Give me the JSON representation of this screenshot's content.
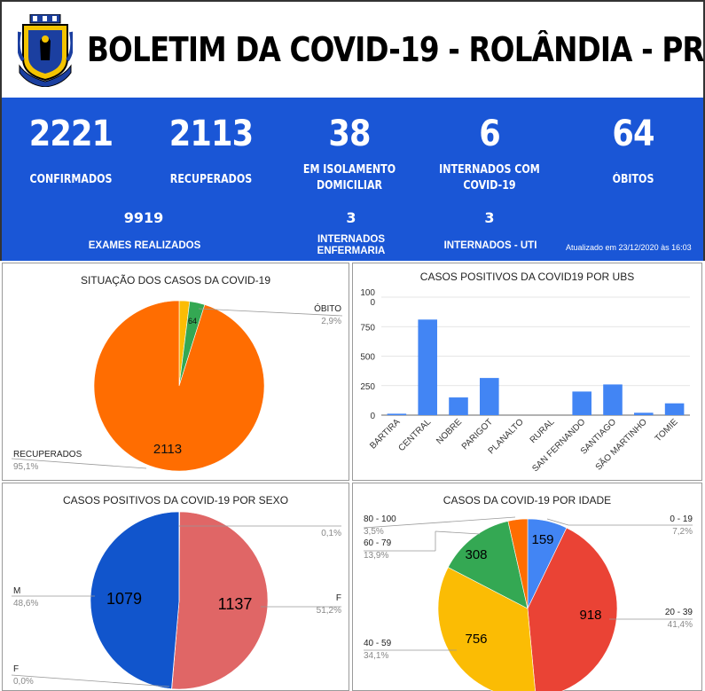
{
  "header": {
    "title": "BOLETIM DA COVID-19 - ROLÂNDIA - PR",
    "crest_icon": "municipal-coat-of-arms"
  },
  "stats": {
    "confirmados": {
      "value": "2221",
      "label": "CONFIRMADOS"
    },
    "recuperados": {
      "value": "2113",
      "label": "RECUPERADOS"
    },
    "isolamento": {
      "value": "38",
      "label_line1": "EM ISOLAMENTO",
      "label_line2": "DOMICILIAR"
    },
    "internados": {
      "value": "6",
      "label_line1": "INTERNADOS COM",
      "label_line2": "COVID-19"
    },
    "obitos": {
      "value": "64",
      "label": "ÓBITOS"
    },
    "exames": {
      "value": "9919",
      "label": "EXAMES REALIZADOS"
    },
    "enfermaria": {
      "value": "3",
      "label_line1": "INTERNADOS",
      "label_line2": "ENFERMARIA"
    },
    "uti": {
      "value": "3",
      "label": "INTERNADOS - UTI"
    },
    "updated": "Atualizado em 23/12/2020 às 16:03"
  },
  "colors": {
    "blue_band": "#1a56d6",
    "orange": "#ff6d01",
    "green": "#34a853",
    "yellow": "#fbbc04",
    "red": "#ea4335",
    "blue": "#4285f4",
    "salmon": "#e06666",
    "dark_blue": "#1155cc"
  },
  "chart_data": [
    {
      "type": "pie",
      "title": "SITUAÇÃO DOS CASOS DA COVID-19",
      "slices": [
        {
          "label": "ÓBITO",
          "value": 64,
          "pct": "2,9%",
          "color": "#34a853",
          "data_label": "64"
        },
        {
          "label": "RECUPERADOS",
          "value": 2113,
          "pct": "95,1%",
          "color": "#ff6d01",
          "data_label": "2113"
        },
        {
          "label": "",
          "value": 44,
          "pct": "",
          "color": "#fbbc04",
          "data_label": ""
        }
      ]
    },
    {
      "type": "bar",
      "title": "CASOS POSITIVOS DA COVID19 POR UBS",
      "categories": [
        "BARTIRA",
        "CENTRAL",
        "NOBRE",
        "PARIGOT",
        "PLANALTO",
        "RURAL",
        "SAN FERNANDO",
        "SANTIAGO",
        "SÃO MARTINHO",
        "TOMIE"
      ],
      "values": [
        12,
        810,
        150,
        315,
        0,
        0,
        200,
        260,
        20,
        100
      ],
      "yticks": [
        "0",
        "250",
        "500",
        "750",
        "100\n0"
      ],
      "ylim": [
        0,
        1000
      ],
      "color": "#4285f4"
    },
    {
      "type": "pie",
      "title": "CASOS POSITIVOS DA COVID-19 POR SEXO",
      "slices": [
        {
          "label": "F",
          "value": 1137,
          "pct": "51,2%",
          "color": "#e06666",
          "data_label": "1137"
        },
        {
          "label": "F",
          "value": 1,
          "pct": "0,0%",
          "color": "#e06666",
          "data_label": ""
        },
        {
          "label": "M",
          "value": 1079,
          "pct": "48,6%",
          "color": "#1155cc",
          "data_label": "1079"
        },
        {
          "label": "",
          "value": 2,
          "pct": "0,1%",
          "color": "#fbbc04",
          "data_label": ""
        }
      ]
    },
    {
      "type": "pie",
      "title": "CASOS DA COVID-19 POR IDADE",
      "slices": [
        {
          "label": "0 - 19",
          "value": 159,
          "pct": "7,2%",
          "color": "#4285f4",
          "data_label": "159"
        },
        {
          "label": "20 - 39",
          "value": 918,
          "pct": "41,4%",
          "color": "#ea4335",
          "data_label": "918"
        },
        {
          "label": "40 - 59",
          "value": 756,
          "pct": "34,1%",
          "color": "#fbbc04",
          "data_label": "756"
        },
        {
          "label": "60 - 79",
          "value": 308,
          "pct": "13,9%",
          "color": "#34a853",
          "data_label": "308"
        },
        {
          "label": "80 - 100",
          "value": 78,
          "pct": "3,5%",
          "color": "#ff6d01",
          "data_label": ""
        }
      ]
    }
  ]
}
